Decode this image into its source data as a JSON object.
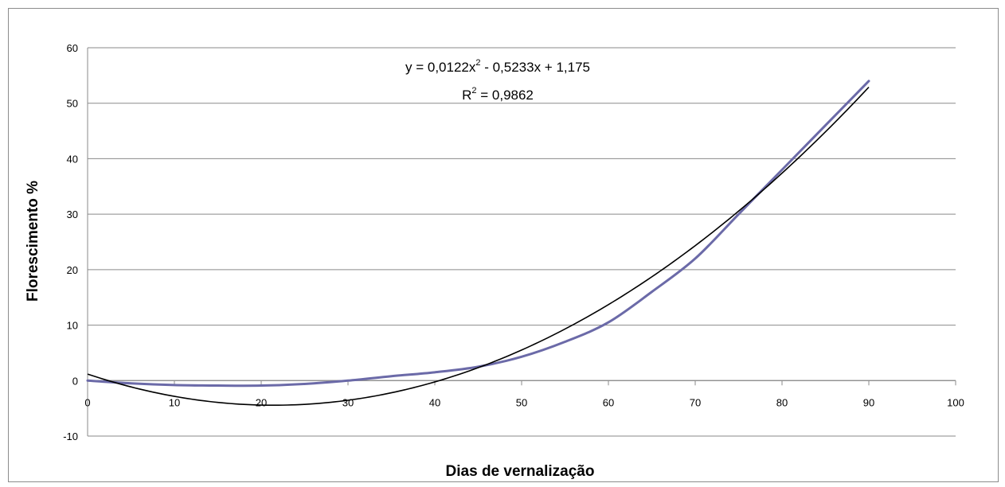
{
  "chart_data": {
    "type": "line",
    "title": "",
    "xlabel": "Dias de vernalização",
    "ylabel": "Florescimento %",
    "xlim": [
      0,
      100
    ],
    "ylim": [
      -10,
      60
    ],
    "x_ticks": [
      0,
      10,
      20,
      30,
      40,
      50,
      60,
      70,
      80,
      90,
      100
    ],
    "y_ticks": [
      -10,
      0,
      10,
      20,
      30,
      40,
      50,
      60
    ],
    "x_tick_labels": [
      "0",
      "10",
      "20",
      "30",
      "40",
      "50",
      "60",
      "70",
      "80",
      "90",
      "100"
    ],
    "y_tick_labels": [
      "-10",
      "0",
      "10",
      "20",
      "30",
      "40",
      "50",
      "60"
    ],
    "grid": "horizontal",
    "series": [
      {
        "color": "#6b6aa8",
        "x": [
          0,
          5,
          10,
          15,
          20,
          25,
          30,
          35,
          40,
          45,
          50,
          55,
          60,
          65,
          70,
          75,
          80,
          85,
          90
        ],
        "y": [
          0,
          -0.5,
          -0.8,
          -0.9,
          -0.9,
          -0.6,
          0,
          0.8,
          1.5,
          2.5,
          4.3,
          7,
          10.5,
          16,
          22,
          30,
          38,
          46,
          54
        ]
      }
    ],
    "trendline": {
      "type": "polynomial",
      "order": 2,
      "color": "#000000",
      "coefficients": [
        0.0122,
        -0.5233,
        1.175
      ],
      "x_range": [
        0,
        90
      ]
    },
    "annotations": {
      "equation_prefix": "y = 0,0122x",
      "equation_sup": "2",
      "equation_rest": " - 0,5233x + 1,175",
      "r2_prefix": "R",
      "r2_sup": "2",
      "r2_rest": " = 0,9862"
    }
  }
}
